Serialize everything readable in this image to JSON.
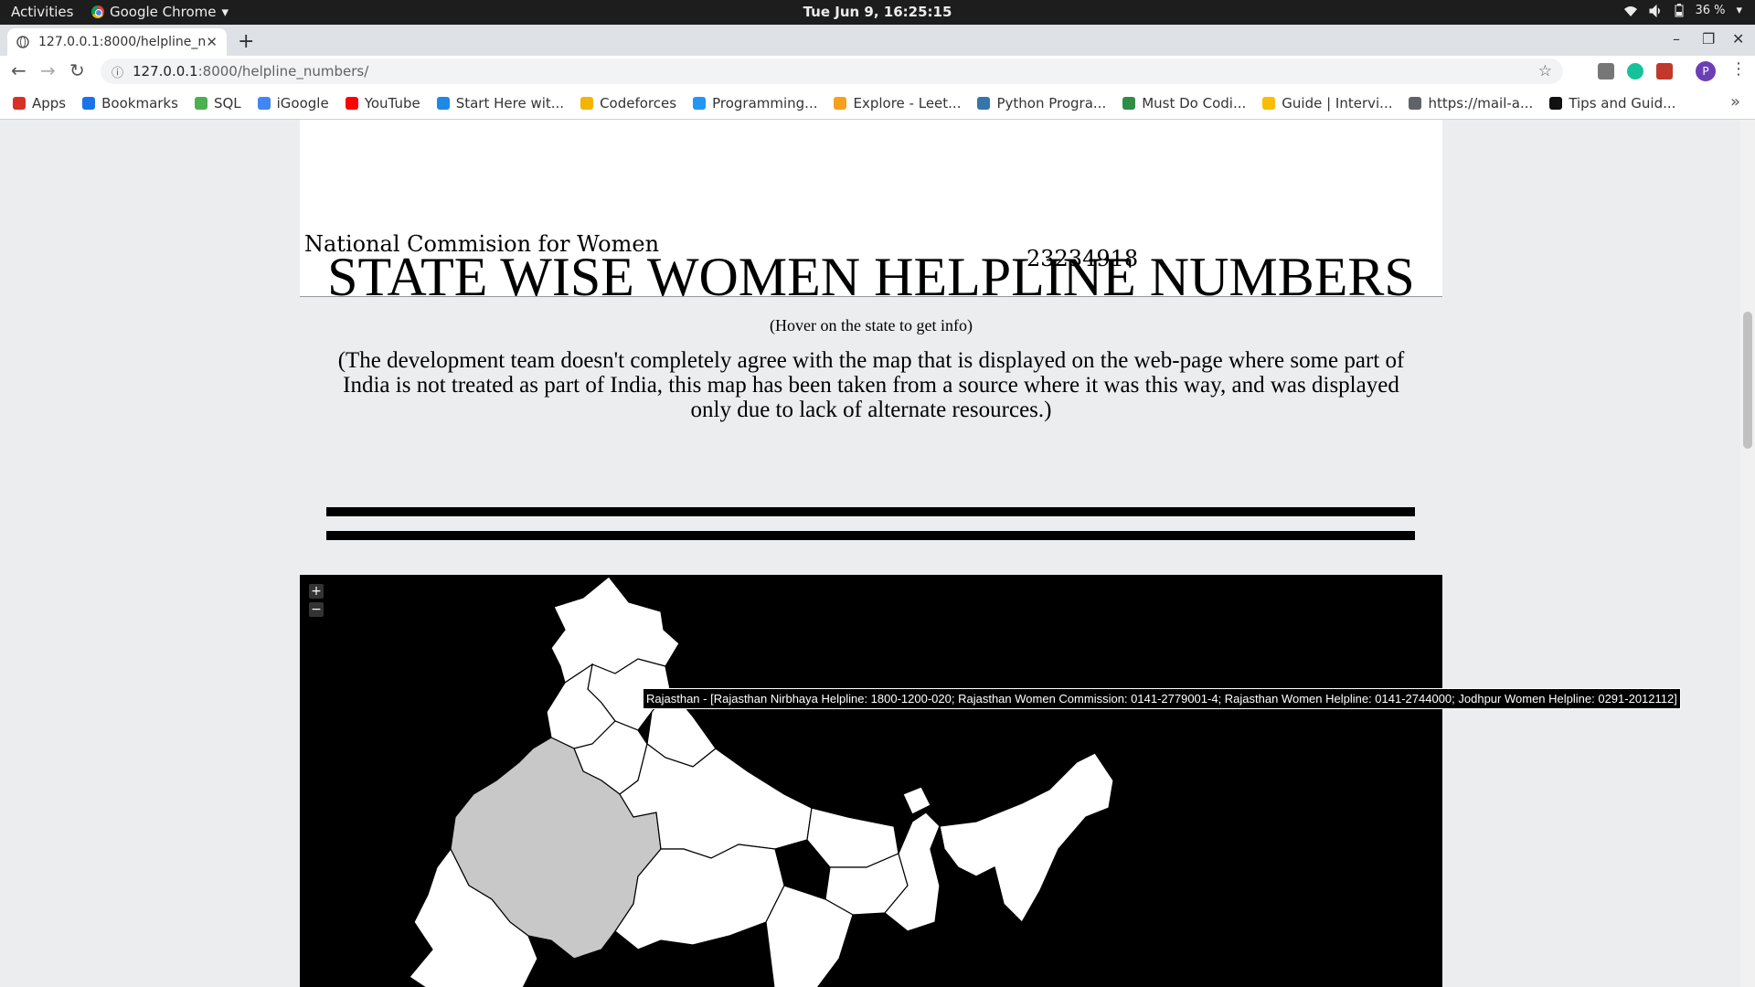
{
  "topbar": {
    "activities": "Activities",
    "app_name": "Google Chrome",
    "clock": "Tue Jun  9, 16:25:15",
    "battery": "36 %"
  },
  "browser": {
    "tab_title": "127.0.0.1:8000/helpline_n",
    "url_host": "127.0.0.1",
    "url_rest": ":8000/helpline_numbers/",
    "profile_initial": "P"
  },
  "bookmarks": [
    {
      "label": "Apps",
      "icon": "apps-grid-icon",
      "color": "#d93025"
    },
    {
      "label": "Bookmarks",
      "icon": "star-icon",
      "color": "#1a73e8"
    },
    {
      "label": "SQL",
      "icon": "sql-icon",
      "color": "#4caf50"
    },
    {
      "label": "iGoogle",
      "icon": "google-icon",
      "color": "#4285f4"
    },
    {
      "label": "YouTube",
      "icon": "youtube-icon",
      "color": "#ff0000"
    },
    {
      "label": "Start Here wit...",
      "icon": "p-icon",
      "color": "#1e88e5"
    },
    {
      "label": "Codeforces",
      "icon": "codeforces-icon",
      "color": "#f4b400"
    },
    {
      "label": "Programming...",
      "icon": "beta-icon",
      "color": "#2196f3"
    },
    {
      "label": "Explore - Leet...",
      "icon": "leetcode-icon",
      "color": "#f89f1b"
    },
    {
      "label": "Python Progra...",
      "icon": "python-icon",
      "color": "#3776ab"
    },
    {
      "label": "Must Do Codi...",
      "icon": "gfg-icon",
      "color": "#2f8d46"
    },
    {
      "label": "Guide | Intervi...",
      "icon": "folder-icon",
      "color": "#fbbc04"
    },
    {
      "label": "https://mail-a...",
      "icon": "globe-icon",
      "color": "#5f6368"
    },
    {
      "label": "Tips and Guid...",
      "icon": "hackerrank-icon",
      "color": "#111111"
    }
  ],
  "page": {
    "national_org": "National Commision for Women",
    "national_number": "23234918",
    "heading": "STATE WISE WOMEN HELPLINE NUMBERS",
    "hint": "(Hover on the state to get info)",
    "disclaimer": "(The development team doesn't completely agree with the map that is displayed on the web-page where some part of India is not treated as part of India, this map has been taken from a source where it was this way, and was displayed only due to lack of alternate resources.)",
    "tooltip": "Rajasthan - [Rajasthan Nirbhaya Helpline: 1800-1200-020; Rajasthan Women Commission: 0141-2779001-4; Rajasthan Women Helpline: 0141-2744000; Jodhpur Women Helpline: 0291-2012112]",
    "zoom_in": "+",
    "zoom_out": "−"
  },
  "colors": {
    "map_background": "#000000",
    "state_fill": "#ffffff",
    "hover_fill": "#c8c8c8"
  }
}
